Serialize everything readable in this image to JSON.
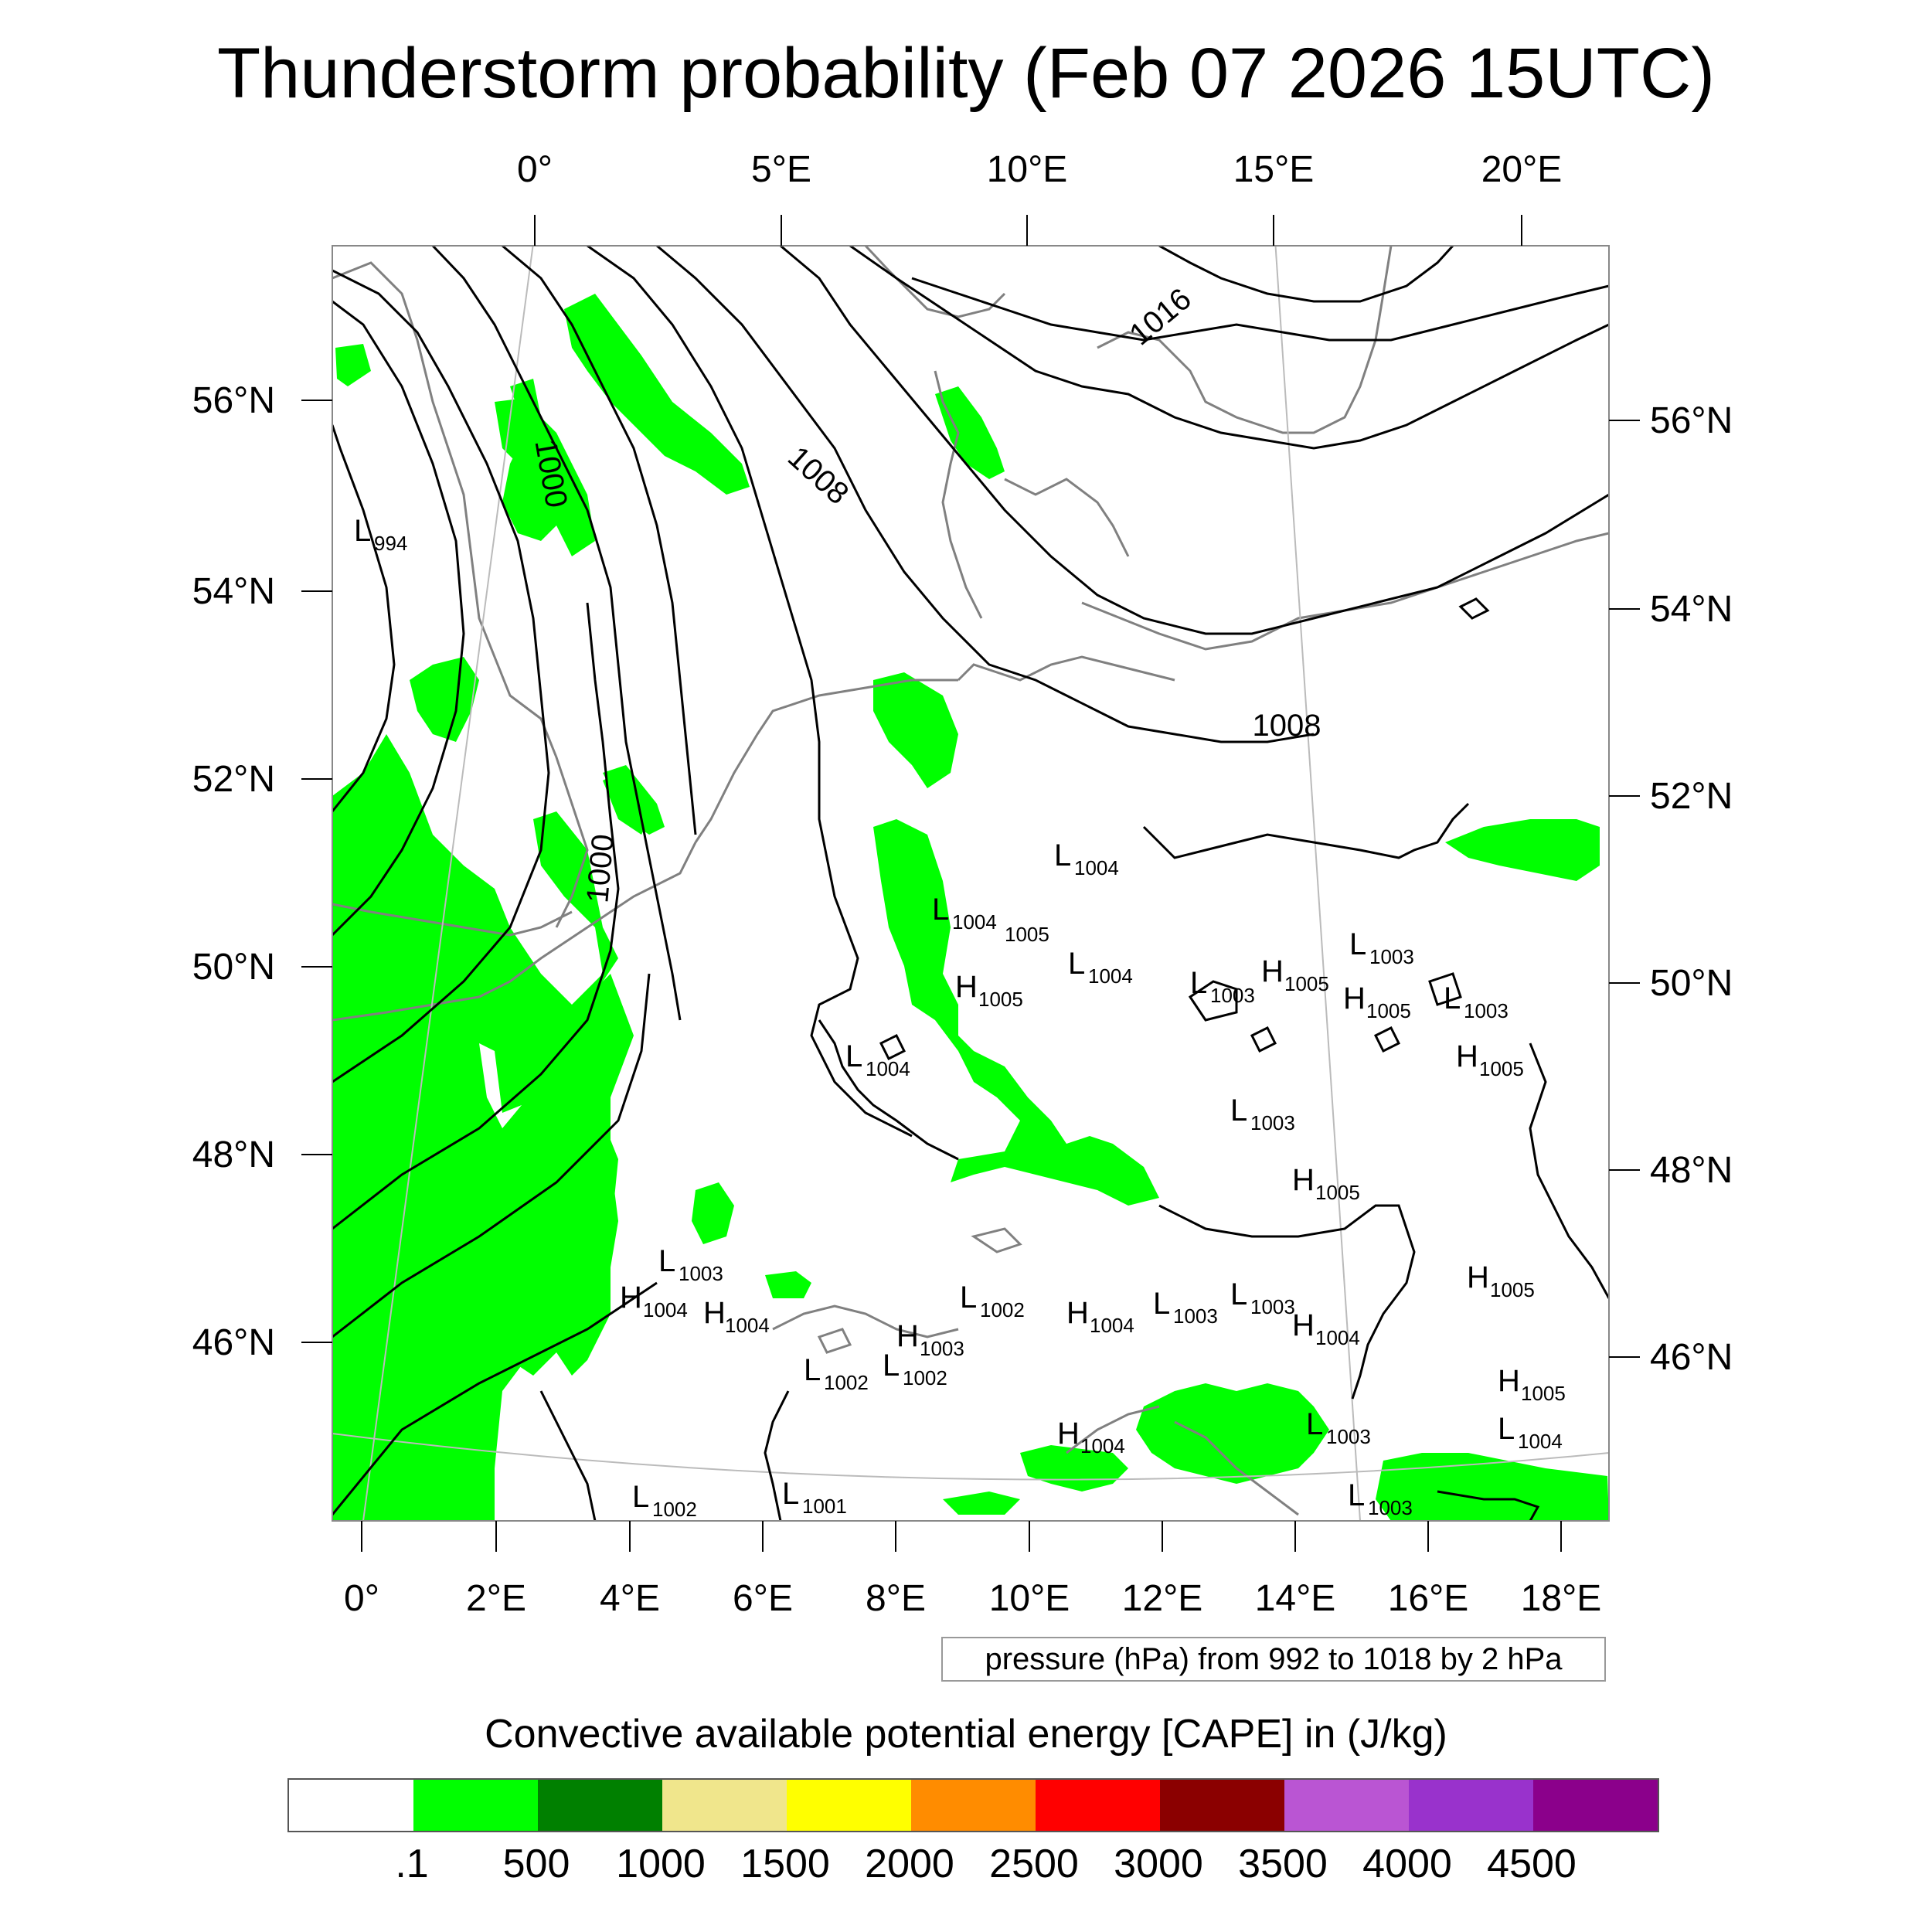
{
  "title": "Thunderstorm probability (Feb 07 2026 15UTC)",
  "axes": {
    "top_lon_labels": [
      "0°",
      "5°E",
      "10°E",
      "15°E",
      "20°E"
    ],
    "bottom_lon_labels": [
      "0°",
      "2°E",
      "4°E",
      "6°E",
      "8°E",
      "10°E",
      "12°E",
      "14°E",
      "16°E",
      "18°E"
    ],
    "left_lat_labels": [
      "56°N",
      "54°N",
      "52°N",
      "50°N",
      "48°N",
      "46°N"
    ],
    "right_lat_labels": [
      "56°N",
      "54°N",
      "52°N",
      "50°N",
      "48°N",
      "46°N"
    ]
  },
  "isobars": {
    "labels": [
      "1000",
      "1008",
      "1016",
      "1008",
      "1000"
    ]
  },
  "pressure_systems": [
    {
      "type": "L",
      "value": "994"
    },
    {
      "type": "L",
      "value": "1004"
    },
    {
      "type": "L",
      "value": "1004"
    },
    {
      "type": "",
      "value": "1005"
    },
    {
      "type": "L",
      "value": "1004"
    },
    {
      "type": "H",
      "value": "1005"
    },
    {
      "type": "L",
      "value": "1003"
    },
    {
      "type": "H",
      "value": "1005"
    },
    {
      "type": "L",
      "value": "1003"
    },
    {
      "type": "H",
      "value": "1005"
    },
    {
      "type": "L",
      "value": "1003"
    },
    {
      "type": "H",
      "value": "1005"
    },
    {
      "type": "L",
      "value": "1004"
    },
    {
      "type": "L",
      "value": "1003"
    },
    {
      "type": "H",
      "value": "1005"
    },
    {
      "type": "L",
      "value": "1003"
    },
    {
      "type": "H",
      "value": "1004"
    },
    {
      "type": "H",
      "value": "1004"
    },
    {
      "type": "L",
      "value": "1002"
    },
    {
      "type": "H",
      "value": "1003"
    },
    {
      "type": "L",
      "value": "1002"
    },
    {
      "type": "L",
      "value": "1002"
    },
    {
      "type": "H",
      "value": "1004"
    },
    {
      "type": "L",
      "value": "1003"
    },
    {
      "type": "L",
      "value": "1003"
    },
    {
      "type": "H",
      "value": "1004"
    },
    {
      "type": "H",
      "value": "1005"
    },
    {
      "type": "H",
      "value": "1005"
    },
    {
      "type": "L",
      "value": "1004"
    },
    {
      "type": "H",
      "value": "1004"
    },
    {
      "type": "L",
      "value": "1003"
    },
    {
      "type": "L",
      "value": "1003"
    },
    {
      "type": "L",
      "value": "1002"
    },
    {
      "type": "L",
      "value": "1001"
    }
  ],
  "contour_info": "pressure (hPa) from 992 to 1018 by 2 hPa",
  "colorbar": {
    "title": "Convective available potential energy [CAPE] in (J/kg)",
    "colors": [
      "#ffffff",
      "#00ff00",
      "#008000",
      "#f0e68c",
      "#ffff00",
      "#ff8c00",
      "#ff0000",
      "#8b0000",
      "#ba55d3",
      "#9932cc",
      "#8b008b"
    ],
    "labels": [
      ".1",
      "500",
      "1000",
      "1500",
      "2000",
      "2500",
      "3000",
      "3500",
      "4000",
      "4500"
    ]
  },
  "colors": {
    "cape_low": "#00ff00",
    "coastline": "#808080",
    "isobar": "#000000"
  }
}
